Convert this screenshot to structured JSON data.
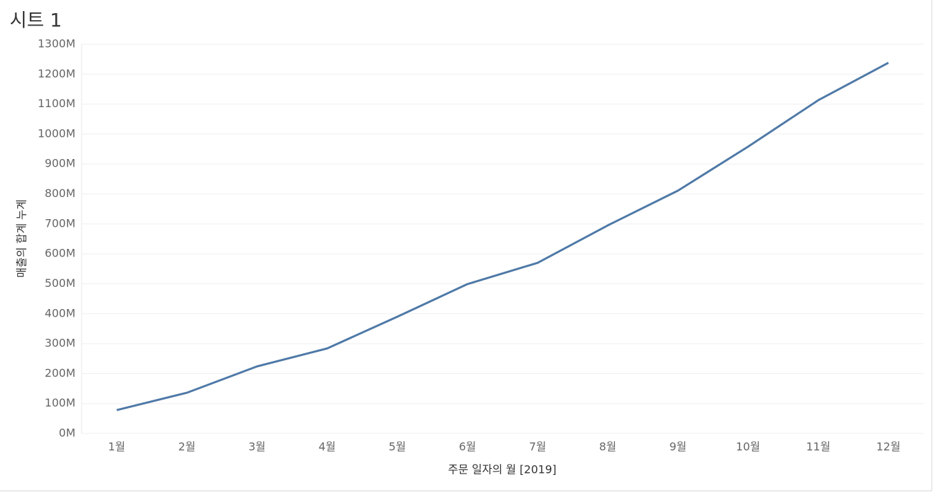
{
  "chart_data": {
    "type": "line",
    "title": "시트 1",
    "x_label": "주문 일자의 월 [2019]",
    "y_label": "매출의 합계 누계",
    "categories": [
      "1월",
      "2월",
      "3월",
      "4월",
      "5월",
      "6월",
      "7월",
      "8월",
      "9월",
      "10월",
      "11월",
      "12월"
    ],
    "series": [
      {
        "name": "매출의 합계 누계",
        "color": "#4e79a7",
        "values": [
          78,
          136,
          224,
          284,
          390,
          499,
          570,
          695,
          811,
          958,
          1113,
          1238
        ]
      }
    ],
    "ylim": [
      0,
      1300
    ],
    "yticks": [
      {
        "value": 0,
        "label": "0M"
      },
      {
        "value": 100,
        "label": "100M"
      },
      {
        "value": 200,
        "label": "200M"
      },
      {
        "value": 300,
        "label": "300M"
      },
      {
        "value": 400,
        "label": "400M"
      },
      {
        "value": 500,
        "label": "500M"
      },
      {
        "value": 600,
        "label": "600M"
      },
      {
        "value": 700,
        "label": "700M"
      },
      {
        "value": 800,
        "label": "800M"
      },
      {
        "value": 900,
        "label": "900M"
      },
      {
        "value": 1000,
        "label": "1000M"
      },
      {
        "value": 1100,
        "label": "1100M"
      },
      {
        "value": 1200,
        "label": "1200M"
      },
      {
        "value": 1300,
        "label": "1300M"
      }
    ],
    "grid": true
  }
}
